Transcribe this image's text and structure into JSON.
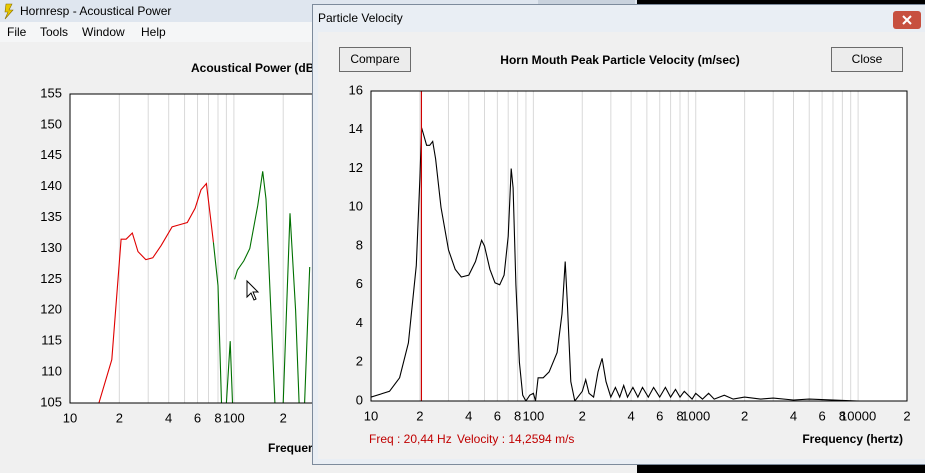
{
  "windows": {
    "main": {
      "title": "Hornresp - Acoustical Power",
      "menu": [
        "File",
        "Tools",
        "Window",
        "Help"
      ]
    },
    "dialog": {
      "title": "Particle Velocity",
      "compare": "Compare",
      "close": "Close",
      "freq_readout": "Freq : 20,44 Hz",
      "velocity_readout": "Velocity : 14,2594 m/s"
    }
  },
  "chart_data": [
    {
      "type": "line",
      "title": "Acoustical Power (dB",
      "x_label": "Frequer",
      "xlog": true,
      "xlim": [
        10,
        20000
      ],
      "ylim": [
        105,
        155
      ],
      "yticks": [
        105,
        110,
        115,
        120,
        125,
        130,
        135,
        140,
        145,
        150,
        155
      ],
      "xticks": [
        10,
        {
          "value": 20,
          "label": "2"
        },
        {
          "value": 40,
          "label": "4"
        },
        {
          "value": 60,
          "label": "6"
        },
        {
          "value": 80,
          "label": "8"
        },
        100,
        {
          "value": 200,
          "label": "2"
        }
      ],
      "xgrid": [
        20,
        30,
        40,
        50,
        60,
        70,
        80,
        90,
        100,
        200,
        300
      ],
      "series": [
        {
          "color": "#e00000",
          "x": [
            15,
            18,
            20.5,
            22,
            24,
            26,
            29,
            32,
            36,
            42,
            46,
            52,
            58,
            63,
            68,
            72,
            75
          ],
          "values": [
            105,
            112,
            131.5,
            131.5,
            132.5,
            129.5,
            128.2,
            128.5,
            130.5,
            133.5,
            133.8,
            134.2,
            136.5,
            139.5,
            140.5,
            135,
            131
          ]
        },
        {
          "color": "#007000",
          "x": [
            75,
            80,
            84,
            87,
            90,
            95,
            98,
            100,
            101,
            105,
            115,
            125,
            140,
            150,
            157,
            165,
            178,
            190,
            200,
            220,
            238,
            250,
            260,
            270,
            290
          ],
          "values": [
            131,
            124,
            105,
            null,
            105,
            115,
            105,
            null,
            125,
            126.5,
            128,
            130,
            137,
            142.5,
            138,
            125,
            105,
            null,
            105,
            135.7,
            120,
            105,
            null,
            105,
            127
          ]
        }
      ]
    },
    {
      "type": "line",
      "title": "Horn Mouth Peak Particle Velocity (m/sec)",
      "x_label": "Frequency (hertz)",
      "xlog": true,
      "xlim": [
        10,
        20000
      ],
      "ylim": [
        0,
        16
      ],
      "yticks": [
        0,
        2,
        4,
        6,
        8,
        10,
        12,
        14,
        16
      ],
      "xticks": [
        10,
        {
          "value": 20,
          "label": "2"
        },
        {
          "value": 40,
          "label": "4"
        },
        {
          "value": 60,
          "label": "6"
        },
        {
          "value": 80,
          "label": "8"
        },
        100,
        {
          "value": 200,
          "label": "2"
        },
        {
          "value": 400,
          "label": "4"
        },
        {
          "value": 600,
          "label": "6"
        },
        {
          "value": 800,
          "label": "8"
        },
        1000,
        {
          "value": 2000,
          "label": "2"
        },
        {
          "value": 4000,
          "label": "4"
        },
        {
          "value": 6000,
          "label": "6"
        },
        {
          "value": 8000,
          "label": "8"
        },
        10000,
        {
          "value": 20000,
          "label": "2"
        }
      ],
      "xgrid": [
        20,
        30,
        40,
        50,
        60,
        70,
        80,
        90,
        100,
        200,
        300,
        400,
        500,
        600,
        700,
        800,
        900,
        1000,
        2000,
        3000,
        4000,
        5000,
        6000,
        7000,
        8000,
        9000,
        10000
      ],
      "cursor": {
        "value": 20.44,
        "color": "#d00000"
      },
      "series": [
        {
          "color": "#000000",
          "x": [
            10,
            13,
            15,
            17,
            19,
            20,
            20.5,
            21,
            22,
            23,
            24,
            25,
            27,
            30,
            33,
            36,
            40,
            44,
            48,
            50,
            54,
            58,
            62,
            66,
            70,
            73,
            75,
            78,
            82,
            86,
            90,
            95,
            100,
            103,
            107,
            115,
            125,
            140,
            150,
            157,
            162,
            170,
            180,
            200,
            210,
            220,
            235,
            250,
            265,
            280,
            300,
            320,
            340,
            360,
            380,
            410,
            440,
            470,
            510,
            550,
            600,
            650,
            700,
            750,
            800,
            850,
            950,
            1000,
            1100,
            1200,
            1300,
            1500,
            1700,
            2000,
            2500,
            3000,
            4000,
            5000,
            10000,
            20000
          ],
          "values": [
            0.2,
            0.5,
            1.2,
            3,
            7,
            11.5,
            14.1,
            13.8,
            13.2,
            13.2,
            13.4,
            12.5,
            10,
            7.8,
            6.8,
            6.4,
            6.5,
            7.2,
            8.3,
            8,
            6.8,
            6.1,
            6,
            6.5,
            8.5,
            12,
            11,
            6,
            2,
            0.3,
            0,
            0.3,
            0.4,
            0,
            1.2,
            1.2,
            1.5,
            2.5,
            4.5,
            7.2,
            5,
            1,
            0,
            0.5,
            1.1,
            0.4,
            0.2,
            1.5,
            2.2,
            1,
            0.2,
            0.7,
            0.2,
            0.8,
            0.2,
            0.7,
            0.2,
            0.7,
            0.2,
            0.7,
            0.2,
            0.7,
            0.2,
            0.6,
            0.2,
            0.5,
            0.1,
            0.4,
            0.1,
            0.4,
            0.1,
            0.3,
            0.1,
            0.2,
            0.1,
            0.15,
            0.05,
            0.1,
            0,
            0
          ]
        }
      ]
    }
  ]
}
